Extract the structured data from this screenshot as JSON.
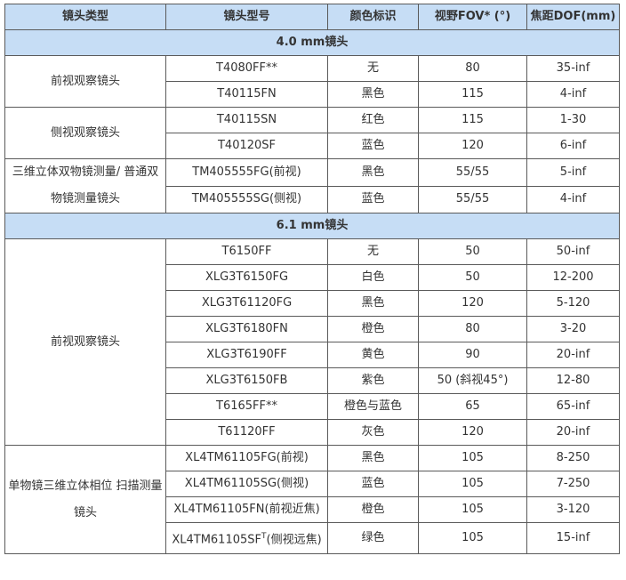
{
  "header_bg": "#c6ddf5",
  "headers": [
    "镜头类型",
    "镜头型号",
    "颜色标识",
    "视野FOV* (°)",
    "焦距DOF(mm)"
  ],
  "sections": [
    {
      "title": "4.0 mm镜头",
      "groups": [
        {
          "type": "前视观察镜头",
          "rows": [
            [
              "T4080FF**",
              "无",
              "80",
              "35-inf"
            ],
            [
              "T40115FN",
              "黑色",
              "115",
              "4-inf"
            ]
          ]
        },
        {
          "type": "侧视观察镜头",
          "rows": [
            [
              "T40115SN",
              "红色",
              "115",
              "1-30"
            ],
            [
              "T40120SF",
              "蓝色",
              "120",
              "6-inf"
            ]
          ]
        },
        {
          "type": "三维立体双物镜测量/ 普通双物镜测量镜头",
          "rows": [
            [
              "TM405555FG(前视)",
              "黑色",
              "55/55",
              "5-inf"
            ],
            [
              "TM405555SG(侧视)",
              "蓝色",
              "55/55",
              "4-inf"
            ]
          ]
        }
      ]
    },
    {
      "title": "6.1 mm镜头",
      "groups": [
        {
          "type": "前视观察镜头",
          "rows": [
            [
              "T6150FF",
              "无",
              "50",
              "50-inf"
            ],
            [
              "XLG3T6150FG",
              "白色",
              "50",
              "12-200"
            ],
            [
              "XLG3T61120FG",
              "黑色",
              "120",
              "5-120"
            ],
            [
              "XLG3T6180FN",
              "橙色",
              "80",
              "3-20"
            ],
            [
              "XLG3T6190FF",
              "黄色",
              "90",
              "20-inf"
            ],
            [
              "XLG3T6150FB",
              "紫色",
              "50 (斜视45°)",
              "12-80"
            ],
            [
              "T6165FF**",
              "橙色与蓝色",
              "65",
              "65-inf"
            ],
            [
              "T61120FF",
              "灰色",
              "120",
              "20-inf"
            ]
          ]
        },
        {
          "type": "单物镜三维立体相位 扫描测量镜头",
          "rows": [
            [
              "XL4TM61105FG(前视)",
              "黑色",
              "105",
              "8-250"
            ],
            [
              "XL4TM61105SG(侧视)",
              "蓝色",
              "105",
              "7-250"
            ],
            [
              "XL4TM61105FN(前视近焦)",
              "橙色",
              "105",
              "3-120"
            ],
            [
              "XL4TM61105SF|T|(侧视远焦)",
              "绿色",
              "105",
              "15-inf"
            ]
          ]
        }
      ]
    }
  ]
}
